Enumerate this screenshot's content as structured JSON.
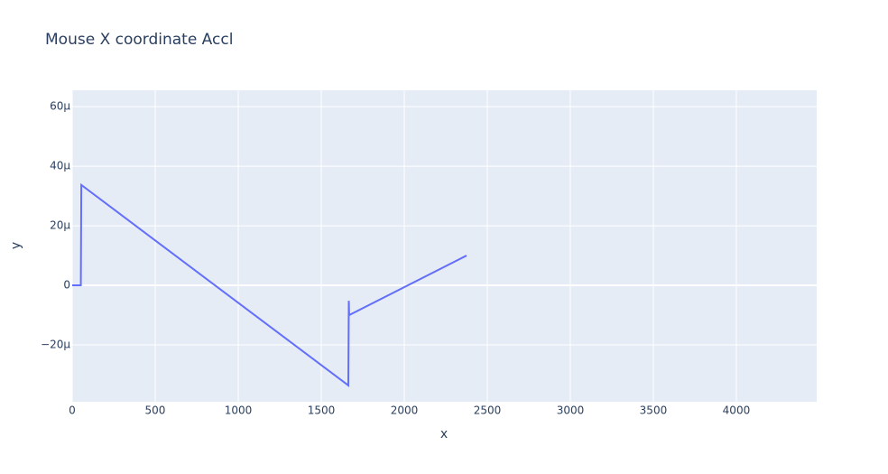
{
  "chart_data": {
    "type": "line",
    "title": "Mouse X coordinate Accl",
    "x_label": "x",
    "y_label": "y",
    "x": [
      0,
      52,
      55,
      1663,
      1666,
      1668,
      2375
    ],
    "series": [
      {
        "color": "#636efa",
        "values": [
          0,
          0,
          3.37e-05,
          -3.36e-05,
          -5.2e-06,
          -1e-05,
          1e-05
        ]
      }
    ],
    "xlim": [
      0,
      4484
    ],
    "xticks": [
      0,
      500,
      1000,
      1500,
      2000,
      2500,
      3000,
      3500,
      4000
    ],
    "ylim": [
      -3.91e-05,
      6.55e-05
    ],
    "yticks": [
      {
        "value": -2e-05,
        "label": "−20µ"
      },
      0,
      {
        "value": 2e-05,
        "label": "20µ"
      },
      {
        "value": 4e-05,
        "label": "40µ"
      },
      {
        "value": 6e-05,
        "label": "60µ"
      }
    ],
    "grid": true
  }
}
